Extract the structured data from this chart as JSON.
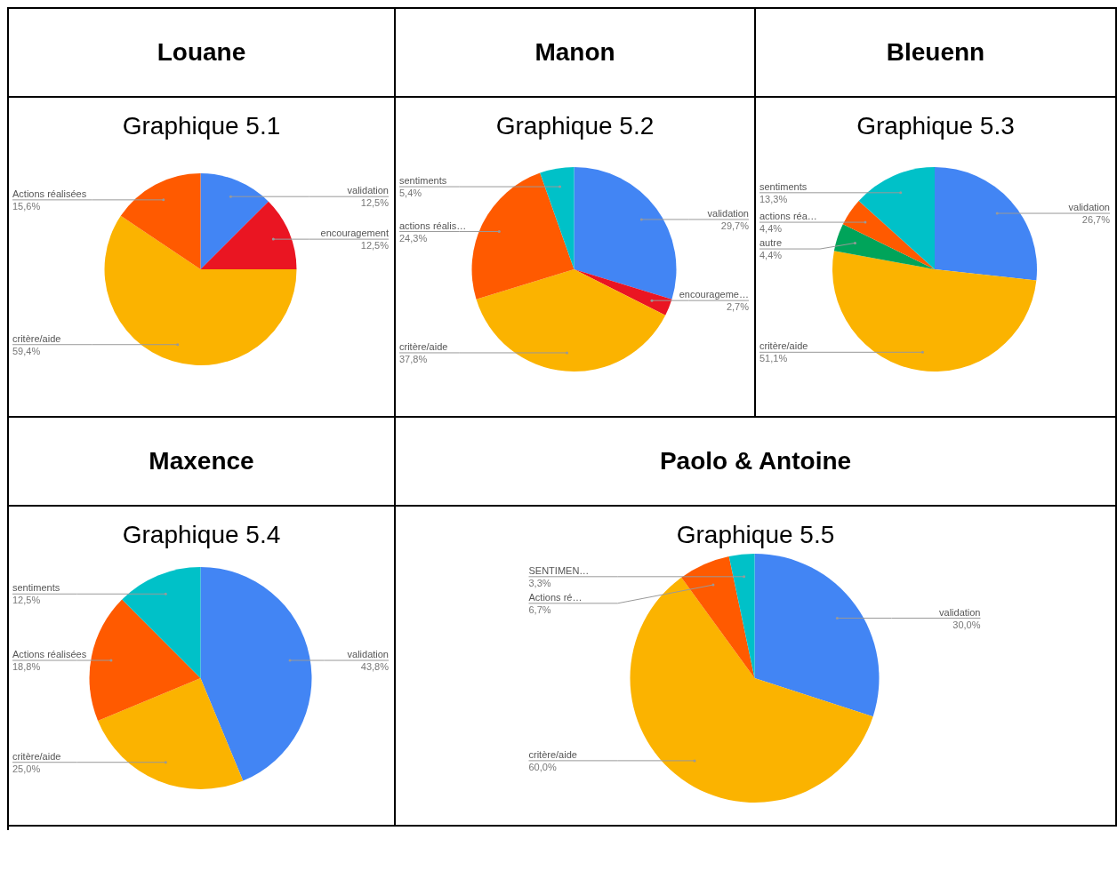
{
  "chart_data": [
    {
      "type": "pie",
      "title": "Louane",
      "subtitle": "Graphique 5.1",
      "categories": [
        "validation",
        "encouragement",
        "critère/aide",
        "Actions réalisées"
      ],
      "values": [
        12.5,
        12.5,
        59.4,
        15.6
      ],
      "value_labels": [
        "12,5%",
        "12,5%",
        "59,4%",
        "15,6%"
      ],
      "colors": [
        "#4285f4",
        "#ea1522",
        "#fbb300",
        "#ff5a00"
      ]
    },
    {
      "type": "pie",
      "title": "Manon",
      "subtitle": "Graphique 5.2",
      "categories": [
        "validation",
        "encourageme…",
        "critère/aide",
        "actions réalis…",
        "sentiments"
      ],
      "values": [
        29.7,
        2.7,
        37.8,
        24.3,
        5.4
      ],
      "value_labels": [
        "29,7%",
        "2,7%",
        "37,8%",
        "24,3%",
        "5,4%"
      ],
      "colors": [
        "#4285f4",
        "#ea1522",
        "#fbb300",
        "#ff5a00",
        "#00c1c8"
      ]
    },
    {
      "type": "pie",
      "title": "Bleuenn",
      "subtitle": "Graphique 5.3",
      "categories": [
        "validation",
        "critère/aide",
        "autre",
        "actions réa…",
        "sentiments"
      ],
      "values": [
        26.7,
        51.1,
        4.4,
        4.4,
        13.3
      ],
      "value_labels": [
        "26,7%",
        "51,1%",
        "4,4%",
        "4,4%",
        "13,3%"
      ],
      "colors": [
        "#4285f4",
        "#fbb300",
        "#00a45a",
        "#ff5a00",
        "#00c1c8"
      ]
    },
    {
      "type": "pie",
      "title": "Maxence",
      "subtitle": "Graphique 5.4",
      "categories": [
        "validation",
        "critère/aide",
        "Actions réalisées",
        "sentiments"
      ],
      "values": [
        43.8,
        25.0,
        18.8,
        12.5
      ],
      "value_labels": [
        "43,8%",
        "25,0%",
        "18,8%",
        "12,5%"
      ],
      "colors": [
        "#4285f4",
        "#fbb300",
        "#ff5a00",
        "#00c1c8"
      ]
    },
    {
      "type": "pie",
      "title": "Paolo & Antoine",
      "subtitle": "Graphique 5.5",
      "categories": [
        "validation",
        "critère/aide",
        "Actions ré…",
        "SENTIMEN…"
      ],
      "values": [
        30.0,
        60.0,
        6.7,
        3.3
      ],
      "value_labels": [
        "30,0%",
        "60,0%",
        "6,7%",
        "3,3%"
      ],
      "colors": [
        "#4285f4",
        "#fbb300",
        "#ff5a00",
        "#00c1c8"
      ]
    }
  ]
}
